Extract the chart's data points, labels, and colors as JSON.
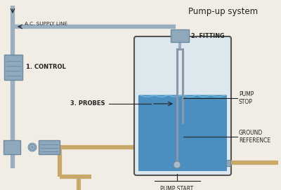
{
  "title": "Pump-up system",
  "bg_color": "#f2ede4",
  "pipe_color": "#9ab0c0",
  "tan_pipe_color": "#c8a96a",
  "box_color": "#8fa8bc",
  "box_edge": "#6a8a9e",
  "tank_outline": "#555555",
  "tank_bg": "#dde8ee",
  "water_color": "#4a8fc0",
  "text_color": "#222222",
  "probe_color": "#8898a8",
  "wave_color": "#70b8e0",
  "labels": {
    "title": "Pump-up system",
    "ac_supply": "A.C. SUPPLY LINE",
    "control": "1. CONTROL",
    "probes": "3. PROBES",
    "fitting": "2. FITTING",
    "pump_stop": "PUMP\nSTOP",
    "ground_ref": "GROUND\nREFERENCE",
    "pump_start": "PUMP START"
  }
}
